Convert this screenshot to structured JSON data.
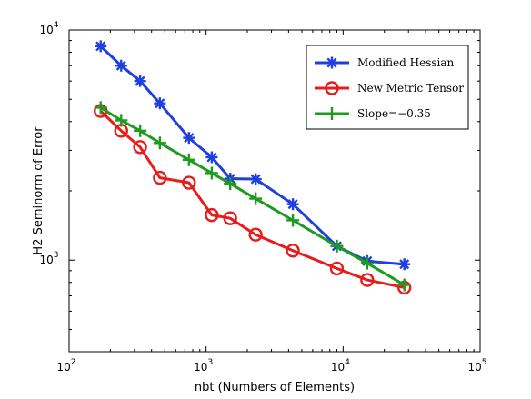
{
  "chart_data": {
    "type": "line",
    "xlabel": "nbt (Numbers of Elements)",
    "ylabel": "H2 Seminorm of Error",
    "x_scale": "log",
    "y_scale": "log",
    "xlim": [
      100,
      100000
    ],
    "ylim": [
      400,
      10000
    ],
    "x_ticks": [
      {
        "value": 100,
        "base": "10",
        "exp": "2"
      },
      {
        "value": 1000,
        "base": "10",
        "exp": "3"
      },
      {
        "value": 10000,
        "base": "10",
        "exp": "4"
      },
      {
        "value": 100000,
        "base": "10",
        "exp": "5"
      }
    ],
    "y_ticks": [
      {
        "value": 1000,
        "base": "10",
        "exp": "3"
      },
      {
        "value": 10000,
        "base": "10",
        "exp": "4"
      }
    ],
    "grid": false,
    "legend_position": "top-right",
    "series": [
      {
        "name": "Modified Hessian",
        "color": "#1f3fe0",
        "marker": "asterisk",
        "x": [
          170,
          240,
          330,
          460,
          750,
          1100,
          1500,
          2300,
          4300,
          9000,
          15000,
          28000
        ],
        "y": [
          8500,
          7000,
          6000,
          4800,
          3400,
          2800,
          2260,
          2250,
          1750,
          1150,
          990,
          960
        ]
      },
      {
        "name": "New Metric Tensor",
        "color": "#e81c1c",
        "marker": "circle",
        "x": [
          170,
          240,
          330,
          460,
          750,
          1100,
          1500,
          2300,
          4300,
          9000,
          15000,
          28000
        ],
        "y": [
          4450,
          3650,
          3100,
          2280,
          2170,
          1570,
          1520,
          1290,
          1100,
          920,
          820,
          760
        ]
      },
      {
        "name": "Slope=−0.35",
        "color": "#1e9b1e",
        "marker": "plus",
        "x": [
          170,
          240,
          330,
          460,
          750,
          1100,
          1500,
          2300,
          4300,
          9000,
          15000,
          28000
        ],
        "y": [
          4600,
          4050,
          3650,
          3230,
          2730,
          2390,
          2150,
          1850,
          1490,
          1150,
          970,
          780
        ]
      }
    ]
  }
}
